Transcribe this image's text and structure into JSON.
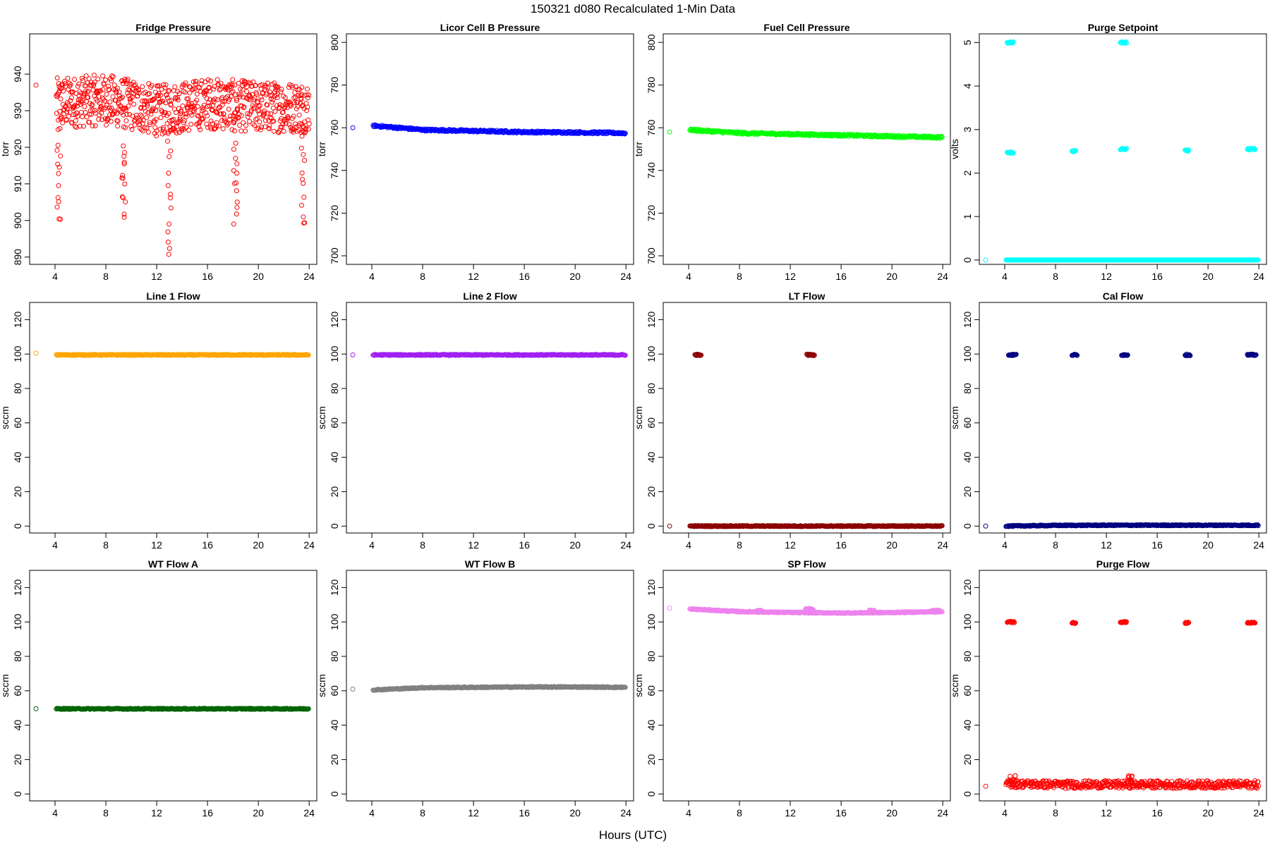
{
  "figure": {
    "title": "150321    d080    Recalculated 1-Min Data",
    "xlabel": "Hours (UTC)"
  },
  "chart_data": [
    {
      "type": "scatter",
      "title": "Fridge Pressure",
      "ylabel": "torr",
      "color": "#ff0000",
      "xlim": [
        2,
        24.6
      ],
      "ylim": [
        888,
        951
      ],
      "xticks": [
        4,
        8,
        12,
        16,
        20,
        24
      ],
      "yticks": [
        890,
        900,
        910,
        920,
        930,
        940
      ],
      "isolated": {
        "x": 2.5,
        "y": 937
      },
      "segments": [
        {
          "x0": 4.1,
          "x1": 24,
          "base": [
            932,
            933,
            930,
            932,
            931,
            931
          ],
          "jitter": 7,
          "step": 0.025
        }
      ],
      "dips": [
        {
          "x": 4.3,
          "y0": 926,
          "y1": 899
        },
        {
          "x": 9.4,
          "y0": 921,
          "y1": 901
        },
        {
          "x": 13.0,
          "y0": 924,
          "y1": 890
        },
        {
          "x": 18.2,
          "y0": 924,
          "y1": 899
        },
        {
          "x": 23.5,
          "y0": 926,
          "y1": 898
        }
      ]
    },
    {
      "type": "scatter",
      "title": "Licor Cell B Pressure",
      "ylabel": "torr",
      "color": "#0000ff",
      "xlim": [
        2,
        24.6
      ],
      "ylim": [
        696,
        804
      ],
      "xticks": [
        4,
        8,
        12,
        16,
        20,
        24
      ],
      "yticks": [
        700,
        720,
        740,
        760,
        780,
        800
      ],
      "isolated": {
        "x": 2.5,
        "y": 760
      },
      "segments": [
        {
          "x0": 4.1,
          "x1": 24,
          "base": [
            761,
            759,
            758.5,
            758,
            757.8,
            757.5
          ],
          "jitter": 0.5,
          "step": 0.05
        }
      ]
    },
    {
      "type": "scatter",
      "title": "Fuel Cell Pressure",
      "ylabel": "torr",
      "color": "#00ff00",
      "xlim": [
        2,
        24.6
      ],
      "ylim": [
        696,
        804
      ],
      "xticks": [
        4,
        8,
        12,
        16,
        20,
        24
      ],
      "yticks": [
        700,
        720,
        740,
        760,
        780,
        800
      ],
      "isolated": {
        "x": 2.5,
        "y": 758
      },
      "segments": [
        {
          "x0": 4.1,
          "x1": 24,
          "base": [
            759,
            757.5,
            757,
            756.5,
            756,
            755.5
          ],
          "jitter": 0.5,
          "step": 0.05
        }
      ]
    },
    {
      "type": "scatter",
      "title": "Purge Setpoint",
      "ylabel": "volts",
      "color": "#00ffff",
      "xlim": [
        2,
        24.6
      ],
      "ylim": [
        -0.1,
        5.2
      ],
      "xticks": [
        4,
        8,
        12,
        16,
        20,
        24
      ],
      "yticks": [
        0,
        1,
        2,
        3,
        4,
        5
      ],
      "isolated": {
        "x": 2.5,
        "y": 0
      },
      "segments": [
        {
          "x0": 4.1,
          "x1": 24,
          "base": [
            0,
            0,
            0,
            0,
            0,
            0
          ],
          "jitter": 0,
          "step": 0.05
        }
      ],
      "clusters": [
        {
          "x0": 4.2,
          "x1": 4.7,
          "y": 5
        },
        {
          "x0": 13.1,
          "x1": 13.6,
          "y": 5
        },
        {
          "x0": 4.2,
          "x1": 4.7,
          "y": 2.47
        },
        {
          "x0": 9.3,
          "x1": 9.6,
          "y": 2.5
        },
        {
          "x0": 13.1,
          "x1": 13.6,
          "y": 2.55
        },
        {
          "x0": 18.2,
          "x1": 18.5,
          "y": 2.52
        },
        {
          "x0": 23.1,
          "x1": 23.7,
          "y": 2.55
        }
      ]
    },
    {
      "type": "scatter",
      "title": "Line 1 Flow",
      "ylabel": "sccm",
      "color": "#ffa500",
      "xlim": [
        2,
        24.6
      ],
      "ylim": [
        -4,
        130
      ],
      "xticks": [
        4,
        8,
        12,
        16,
        20,
        24
      ],
      "yticks": [
        0,
        20,
        40,
        60,
        80,
        100,
        120
      ],
      "isolated": {
        "x": 2.5,
        "y": 100.5
      },
      "segments": [
        {
          "x0": 4.1,
          "x1": 24,
          "base": [
            99.5,
            99.5,
            99.5,
            99.5,
            99.5,
            99.5
          ],
          "jitter": 0.3,
          "step": 0.05
        }
      ]
    },
    {
      "type": "scatter",
      "title": "Line 2 Flow",
      "ylabel": "sccm",
      "color": "#a020f0",
      "xlim": [
        2,
        24.6
      ],
      "ylim": [
        -4,
        130
      ],
      "xticks": [
        4,
        8,
        12,
        16,
        20,
        24
      ],
      "yticks": [
        0,
        20,
        40,
        60,
        80,
        100,
        120
      ],
      "isolated": {
        "x": 2.5,
        "y": 99.5
      },
      "segments": [
        {
          "x0": 4.1,
          "x1": 24,
          "base": [
            99.5,
            99.5,
            99.5,
            99.5,
            99.5,
            99.5
          ],
          "jitter": 0.3,
          "step": 0.05
        }
      ]
    },
    {
      "type": "scatter",
      "title": "LT Flow",
      "ylabel": "sccm",
      "color": "#8b0000",
      "xlim": [
        2,
        24.6
      ],
      "ylim": [
        -4,
        130
      ],
      "xticks": [
        4,
        8,
        12,
        16,
        20,
        24
      ],
      "yticks": [
        0,
        20,
        40,
        60,
        80,
        100,
        120
      ],
      "isolated": {
        "x": 2.5,
        "y": 0
      },
      "segments": [
        {
          "x0": 4.1,
          "x1": 24,
          "base": [
            0,
            0,
            0,
            0,
            0,
            0
          ],
          "jitter": 0.3,
          "step": 0.05
        }
      ],
      "clusters": [
        {
          "x0": 4.5,
          "x1": 5.0,
          "y": 99.5
        },
        {
          "x0": 13.3,
          "x1": 13.9,
          "y": 99.5
        }
      ]
    },
    {
      "type": "scatter",
      "title": "Cal Flow",
      "ylabel": "sccm",
      "color": "#000080",
      "xlim": [
        2,
        24.6
      ],
      "ylim": [
        -4,
        130
      ],
      "xticks": [
        4,
        8,
        12,
        16,
        20,
        24
      ],
      "yticks": [
        0,
        20,
        40,
        60,
        80,
        100,
        120
      ],
      "isolated": {
        "x": 2.5,
        "y": 0
      },
      "segments": [
        {
          "x0": 4.1,
          "x1": 24,
          "base": [
            0,
            0.4,
            0.5,
            0.5,
            0.5,
            0.5
          ],
          "jitter": 0.3,
          "step": 0.05
        }
      ],
      "clusters": [
        {
          "x0": 4.3,
          "x1": 4.9,
          "y": 99.5
        },
        {
          "x0": 9.3,
          "x1": 9.7,
          "y": 99.5
        },
        {
          "x0": 13.2,
          "x1": 13.7,
          "y": 99.5
        },
        {
          "x0": 18.2,
          "x1": 18.6,
          "y": 99.5
        },
        {
          "x0": 23.1,
          "x1": 23.8,
          "y": 99.5
        }
      ]
    },
    {
      "type": "scatter",
      "title": "WT Flow A",
      "ylabel": "sccm",
      "color": "#006400",
      "xlim": [
        2,
        24.6
      ],
      "ylim": [
        -4,
        130
      ],
      "xticks": [
        4,
        8,
        12,
        16,
        20,
        24
      ],
      "yticks": [
        0,
        20,
        40,
        60,
        80,
        100,
        120
      ],
      "isolated": {
        "x": 2.5,
        "y": 49.5
      },
      "segments": [
        {
          "x0": 4.1,
          "x1": 24,
          "base": [
            49.5,
            49.5,
            49.5,
            49.5,
            49.5,
            49.5
          ],
          "jitter": 0.3,
          "step": 0.05
        }
      ]
    },
    {
      "type": "scatter",
      "title": "WT Flow B",
      "ylabel": "sccm",
      "color": "#808080",
      "xlim": [
        2,
        24.6
      ],
      "ylim": [
        -4,
        130
      ],
      "xticks": [
        4,
        8,
        12,
        16,
        20,
        24
      ],
      "yticks": [
        0,
        20,
        40,
        60,
        80,
        100,
        120
      ],
      "isolated": {
        "x": 2.5,
        "y": 61
      },
      "segments": [
        {
          "x0": 4.1,
          "x1": 24,
          "base": [
            60.5,
            61.8,
            62,
            62.2,
            62.2,
            62
          ],
          "jitter": 0.3,
          "step": 0.05
        }
      ]
    },
    {
      "type": "scatter",
      "title": "SP Flow",
      "ylabel": "sccm",
      "color": "#ee82ee",
      "xlim": [
        2,
        24.6
      ],
      "ylim": [
        -4,
        130
      ],
      "xticks": [
        4,
        8,
        12,
        16,
        20,
        24
      ],
      "yticks": [
        0,
        20,
        40,
        60,
        80,
        100,
        120
      ],
      "isolated": {
        "x": 2.5,
        "y": 108
      },
      "segments": [
        {
          "x0": 4.1,
          "x1": 24,
          "base": [
            107.5,
            106,
            105.5,
            105.2,
            105.5,
            106
          ],
          "jitter": 0.3,
          "step": 0.05
        }
      ],
      "clusters": [
        {
          "x0": 9.3,
          "x1": 9.7,
          "y": 106.5
        },
        {
          "x0": 13.2,
          "x1": 13.8,
          "y": 107.5
        },
        {
          "x0": 18.2,
          "x1": 18.6,
          "y": 106.5
        },
        {
          "x0": 23.1,
          "x1": 23.7,
          "y": 106.5
        }
      ]
    },
    {
      "type": "scatter",
      "title": "Purge Flow",
      "ylabel": "sccm",
      "color": "#ff0000",
      "xlim": [
        2,
        24.6
      ],
      "ylim": [
        -4,
        130
      ],
      "xticks": [
        4,
        8,
        12,
        16,
        20,
        24
      ],
      "yticks": [
        0,
        20,
        40,
        60,
        80,
        100,
        120
      ],
      "isolated": {
        "x": 2.5,
        "y": 4.5
      },
      "segments": [
        {
          "x0": 4.1,
          "x1": 24,
          "base": [
            6,
            5.5,
            5.5,
            5.5,
            5.5,
            5.5
          ],
          "jitter": 2.2,
          "step": 0.04
        }
      ],
      "clusters": [
        {
          "x0": 4.2,
          "x1": 4.8,
          "y": 100
        },
        {
          "x0": 9.3,
          "x1": 9.6,
          "y": 99.5
        },
        {
          "x0": 13.1,
          "x1": 13.6,
          "y": 100
        },
        {
          "x0": 18.2,
          "x1": 18.5,
          "y": 99.5
        },
        {
          "x0": 23.1,
          "x1": 23.7,
          "y": 99.5
        }
      ],
      "bumps": [
        {
          "x": 4.6,
          "y": 11
        },
        {
          "x": 13.8,
          "y": 11
        }
      ]
    }
  ]
}
